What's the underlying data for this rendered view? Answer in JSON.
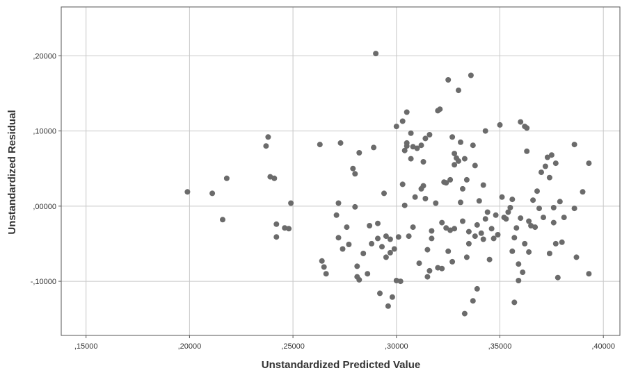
{
  "chart_data": {
    "type": "scatter",
    "xlabel": "Unstandardized Predicted Value",
    "ylabel": "Unstandardized Residual",
    "xlim": [
      0.138,
      0.408
    ],
    "ylim": [
      -0.172,
      0.265
    ],
    "x_ticks": [
      0.15,
      0.2,
      0.25,
      0.3,
      0.35,
      0.4
    ],
    "x_tick_labels": [
      ",15000",
      ",20000",
      ",25000",
      ",30000",
      ",35000",
      ",40000"
    ],
    "y_ticks": [
      -0.1,
      0.0,
      0.1,
      0.2
    ],
    "y_tick_labels": [
      "-,10000",
      ",00000",
      ",10000",
      ",20000"
    ],
    "grid": true,
    "colors": {
      "marker": "#6b6b6b",
      "grid": "#c8c8c8",
      "axis": "#555555"
    },
    "points": [
      [
        0.199,
        0.019
      ],
      [
        0.211,
        0.017
      ],
      [
        0.216,
        -0.018
      ],
      [
        0.218,
        0.037
      ],
      [
        0.237,
        0.08
      ],
      [
        0.238,
        0.092
      ],
      [
        0.239,
        0.039
      ],
      [
        0.241,
        0.037
      ],
      [
        0.242,
        -0.024
      ],
      [
        0.242,
        -0.041
      ],
      [
        0.246,
        -0.029
      ],
      [
        0.248,
        -0.03
      ],
      [
        0.249,
        0.004
      ],
      [
        0.263,
        0.082
      ],
      [
        0.264,
        -0.073
      ],
      [
        0.265,
        -0.081
      ],
      [
        0.266,
        -0.09
      ],
      [
        0.271,
        -0.012
      ],
      [
        0.272,
        0.004
      ],
      [
        0.272,
        -0.042
      ],
      [
        0.273,
        0.084
      ],
      [
        0.274,
        -0.057
      ],
      [
        0.276,
        -0.028
      ],
      [
        0.277,
        -0.051
      ],
      [
        0.279,
        0.05
      ],
      [
        0.28,
        0.043
      ],
      [
        0.28,
        -0.001
      ],
      [
        0.281,
        -0.08
      ],
      [
        0.281,
        -0.094
      ],
      [
        0.282,
        0.071
      ],
      [
        0.282,
        -0.098
      ],
      [
        0.284,
        -0.063
      ],
      [
        0.286,
        -0.09
      ],
      [
        0.287,
        -0.026
      ],
      [
        0.288,
        -0.05
      ],
      [
        0.289,
        0.078
      ],
      [
        0.29,
        0.203
      ],
      [
        0.291,
        -0.023
      ],
      [
        0.291,
        -0.043
      ],
      [
        0.292,
        -0.116
      ],
      [
        0.293,
        -0.054
      ],
      [
        0.294,
        0.017
      ],
      [
        0.295,
        -0.068
      ],
      [
        0.295,
        -0.04
      ],
      [
        0.296,
        -0.133
      ],
      [
        0.297,
        -0.044
      ],
      [
        0.297,
        -0.062
      ],
      [
        0.298,
        -0.121
      ],
      [
        0.299,
        -0.057
      ],
      [
        0.3,
        0.106
      ],
      [
        0.3,
        -0.099
      ],
      [
        0.301,
        -0.041
      ],
      [
        0.302,
        -0.1
      ],
      [
        0.303,
        0.029
      ],
      [
        0.303,
        0.113
      ],
      [
        0.304,
        0.074
      ],
      [
        0.304,
        0.001
      ],
      [
        0.305,
        0.084
      ],
      [
        0.305,
        0.125
      ],
      [
        0.305,
        0.08
      ],
      [
        0.306,
        -0.04
      ],
      [
        0.307,
        0.063
      ],
      [
        0.307,
        0.097
      ],
      [
        0.308,
        0.079
      ],
      [
        0.308,
        -0.028
      ],
      [
        0.309,
        0.012
      ],
      [
        0.31,
        0.077
      ],
      [
        0.311,
        -0.076
      ],
      [
        0.312,
        0.081
      ],
      [
        0.312,
        0.023
      ],
      [
        0.313,
        0.027
      ],
      [
        0.313,
        0.059
      ],
      [
        0.314,
        0.09
      ],
      [
        0.314,
        0.01
      ],
      [
        0.315,
        -0.058
      ],
      [
        0.315,
        -0.094
      ],
      [
        0.316,
        0.095
      ],
      [
        0.316,
        -0.086
      ],
      [
        0.317,
        -0.043
      ],
      [
        0.317,
        -0.033
      ],
      [
        0.319,
        0.004
      ],
      [
        0.32,
        0.127
      ],
      [
        0.32,
        -0.082
      ],
      [
        0.321,
        0.129
      ],
      [
        0.322,
        -0.022
      ],
      [
        0.322,
        -0.083
      ],
      [
        0.323,
        0.032
      ],
      [
        0.324,
        0.031
      ],
      [
        0.324,
        -0.029
      ],
      [
        0.325,
        0.168
      ],
      [
        0.325,
        -0.06
      ],
      [
        0.326,
        0.035
      ],
      [
        0.326,
        -0.032
      ],
      [
        0.327,
        -0.074
      ],
      [
        0.327,
        0.092
      ],
      [
        0.328,
        0.07
      ],
      [
        0.328,
        0.055
      ],
      [
        0.328,
        -0.03
      ],
      [
        0.329,
        0.064
      ],
      [
        0.33,
        0.154
      ],
      [
        0.33,
        0.06
      ],
      [
        0.331,
        0.085
      ],
      [
        0.331,
        0.005
      ],
      [
        0.332,
        0.023
      ],
      [
        0.332,
        -0.02
      ],
      [
        0.333,
        0.063
      ],
      [
        0.333,
        -0.143
      ],
      [
        0.334,
        0.035
      ],
      [
        0.334,
        -0.068
      ],
      [
        0.335,
        -0.05
      ],
      [
        0.335,
        -0.034
      ],
      [
        0.336,
        0.174
      ],
      [
        0.337,
        0.081
      ],
      [
        0.337,
        -0.126
      ],
      [
        0.338,
        0.054
      ],
      [
        0.338,
        -0.04
      ],
      [
        0.339,
        -0.025
      ],
      [
        0.339,
        -0.11
      ],
      [
        0.34,
        0.007
      ],
      [
        0.341,
        -0.036
      ],
      [
        0.342,
        -0.044
      ],
      [
        0.342,
        0.028
      ],
      [
        0.343,
        0.1
      ],
      [
        0.343,
        -0.017
      ],
      [
        0.344,
        -0.008
      ],
      [
        0.345,
        -0.071
      ],
      [
        0.346,
        -0.03
      ],
      [
        0.347,
        -0.043
      ],
      [
        0.348,
        -0.012
      ],
      [
        0.349,
        -0.038
      ],
      [
        0.35,
        0.108
      ],
      [
        0.351,
        0.012
      ],
      [
        0.352,
        -0.015
      ],
      [
        0.353,
        -0.017
      ],
      [
        0.354,
        -0.008
      ],
      [
        0.355,
        -0.002
      ],
      [
        0.356,
        0.009
      ],
      [
        0.356,
        -0.06
      ],
      [
        0.357,
        -0.042
      ],
      [
        0.357,
        -0.128
      ],
      [
        0.358,
        -0.029
      ],
      [
        0.359,
        -0.077
      ],
      [
        0.359,
        -0.099
      ],
      [
        0.36,
        0.112
      ],
      [
        0.36,
        -0.016
      ],
      [
        0.361,
        -0.088
      ],
      [
        0.362,
        0.106
      ],
      [
        0.362,
        -0.05
      ],
      [
        0.363,
        0.104
      ],
      [
        0.363,
        0.073
      ],
      [
        0.364,
        -0.061
      ],
      [
        0.364,
        -0.02
      ],
      [
        0.365,
        -0.026
      ],
      [
        0.366,
        0.008
      ],
      [
        0.367,
        -0.028
      ],
      [
        0.368,
        0.02
      ],
      [
        0.369,
        -0.003
      ],
      [
        0.37,
        0.045
      ],
      [
        0.371,
        -0.015
      ],
      [
        0.372,
        0.053
      ],
      [
        0.373,
        0.065
      ],
      [
        0.374,
        -0.063
      ],
      [
        0.374,
        0.038
      ],
      [
        0.375,
        0.068
      ],
      [
        0.376,
        -0.002
      ],
      [
        0.376,
        -0.022
      ],
      [
        0.377,
        0.057
      ],
      [
        0.377,
        -0.05
      ],
      [
        0.378,
        -0.095
      ],
      [
        0.379,
        0.006
      ],
      [
        0.38,
        -0.048
      ],
      [
        0.381,
        -0.015
      ],
      [
        0.386,
        0.082
      ],
      [
        0.386,
        -0.003
      ],
      [
        0.387,
        -0.068
      ],
      [
        0.39,
        0.019
      ],
      [
        0.393,
        0.057
      ],
      [
        0.393,
        -0.09
      ]
    ]
  }
}
